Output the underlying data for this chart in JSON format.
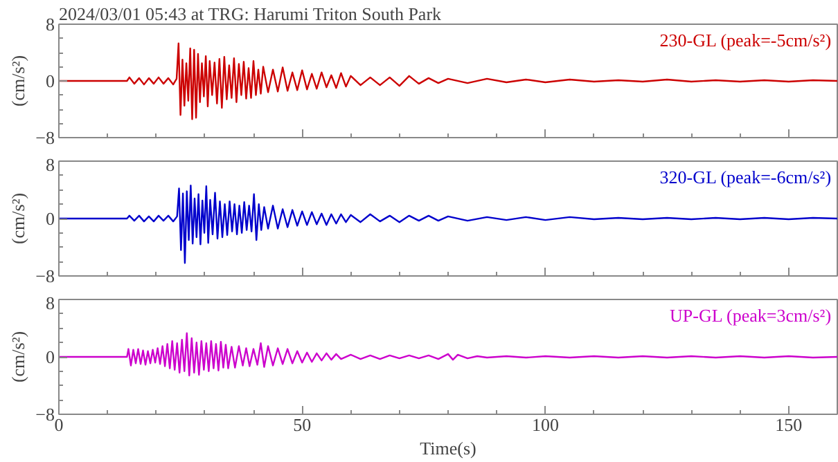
{
  "chart_data": [
    {
      "type": "line",
      "title": "2024/03/01 05:43 at TRG: Harumi Triton South Park",
      "ylabel": "(cm/s²)",
      "annotations": [
        "230-GL (peak=-5cm/s²)"
      ],
      "tick_labels": "y",
      "xlim": [
        0,
        160
      ],
      "ylim": [
        -8,
        8
      ],
      "xticks": [
        0,
        {
          "value": 10,
          "label": null
        },
        {
          "value": 20,
          "label": null
        },
        {
          "value": 30,
          "label": null
        },
        {
          "value": 40,
          "label": null
        },
        50,
        {
          "value": 60,
          "label": null
        },
        {
          "value": 70,
          "label": null
        },
        {
          "value": 80,
          "label": null
        },
        {
          "value": 90,
          "label": null
        },
        100,
        {
          "value": 110,
          "label": null
        },
        {
          "value": 120,
          "label": null
        },
        {
          "value": 130,
          "label": null
        },
        {
          "value": 140,
          "label": null
        },
        150
      ],
      "yticks": [
        -8,
        {
          "value": -6,
          "label": null
        },
        {
          "value": -4,
          "label": null
        },
        {
          "value": -2,
          "label": null
        },
        0,
        {
          "value": 2,
          "label": null
        },
        {
          "value": 4,
          "label": null
        },
        {
          "value": 6,
          "label": null
        },
        8
      ],
      "x": [
        0,
        14,
        14.5,
        15.5,
        16.5,
        17.5,
        18.5,
        19.5,
        20.5,
        21.5,
        22.5,
        23.5,
        24.2,
        24.6,
        25,
        25.4,
        25.8,
        26.2,
        26.6,
        27,
        27.4,
        27.8,
        28.2,
        28.6,
        29,
        29.4,
        29.8,
        30.2,
        30.6,
        31,
        31.5,
        32,
        32.5,
        33,
        33.5,
        34,
        34.5,
        35,
        35.5,
        36,
        36.5,
        37,
        37.5,
        38,
        38.5,
        39,
        39.5,
        40,
        40.5,
        41,
        41.5,
        42,
        43,
        44,
        45,
        46,
        47,
        48,
        49,
        50,
        51,
        52,
        53,
        54,
        55,
        56,
        57,
        58,
        59,
        60,
        62,
        64,
        66,
        68,
        70,
        72,
        74,
        76,
        78,
        80,
        84,
        88,
        92,
        96,
        100,
        105,
        110,
        115,
        120,
        125,
        130,
        135,
        140,
        145,
        150,
        155,
        160
      ],
      "series": [
        {
          "color": "#cc0000",
          "values": [
            0,
            0,
            0.5,
            -0.4,
            0.4,
            -0.5,
            0.4,
            -0.4,
            0.5,
            -0.4,
            0.4,
            -0.5,
            0.3,
            5.3,
            -4.8,
            3,
            -3.5,
            2.5,
            -2.8,
            4.6,
            -5.4,
            4.4,
            -5.2,
            3.8,
            -3,
            2.5,
            -2.2,
            3.5,
            -3.6,
            2.8,
            -2,
            2.6,
            -3.2,
            3.1,
            -3.8,
            3.4,
            -2.6,
            2.2,
            -2.4,
            3.2,
            -3,
            2.4,
            -2,
            2.7,
            -2.5,
            1.8,
            -2.4,
            2.8,
            -2,
            1.6,
            -1.8,
            2,
            -1.6,
            1.6,
            -1.5,
            1.9,
            -1.4,
            1.2,
            -1.3,
            1.5,
            -1.2,
            1,
            -1.1,
            1.2,
            -0.9,
            0.8,
            -1,
            1.1,
            -0.8,
            0.7,
            -0.6,
            0.5,
            -0.6,
            0.5,
            -0.7,
            0.7,
            -0.4,
            0.4,
            -0.3,
            0.3,
            -0.3,
            0.3,
            -0.2,
            0.2,
            -0.2,
            0.2,
            -0.1,
            0.1,
            -0.1,
            0.2,
            -0.1,
            0.1,
            -0.1,
            0.1,
            -0.1,
            0.1,
            0
          ]
        }
      ]
    },
    {
      "type": "line",
      "ylabel": "(cm/s²)",
      "annotations": [
        "320-GL (peak=-6cm/s²)"
      ],
      "tick_labels": "y",
      "xlim": [
        0,
        160
      ],
      "ylim": [
        -8,
        8
      ],
      "xticks": [
        0,
        {
          "value": 10,
          "label": null
        },
        {
          "value": 20,
          "label": null
        },
        {
          "value": 30,
          "label": null
        },
        {
          "value": 40,
          "label": null
        },
        50,
        {
          "value": 60,
          "label": null
        },
        {
          "value": 70,
          "label": null
        },
        {
          "value": 80,
          "label": null
        },
        {
          "value": 90,
          "label": null
        },
        100,
        {
          "value": 110,
          "label": null
        },
        {
          "value": 120,
          "label": null
        },
        {
          "value": 130,
          "label": null
        },
        {
          "value": 140,
          "label": null
        },
        150
      ],
      "yticks": [
        -8,
        {
          "value": -6,
          "label": null
        },
        {
          "value": -4,
          "label": null
        },
        {
          "value": -2,
          "label": null
        },
        0,
        {
          "value": 2,
          "label": null
        },
        {
          "value": 4,
          "label": null
        },
        {
          "value": 6,
          "label": null
        },
        8
      ],
      "x": [
        0,
        14,
        14.5,
        15.5,
        16.5,
        17.5,
        18.5,
        19.5,
        20.5,
        21.5,
        22.5,
        23.5,
        24.3,
        24.7,
        25.1,
        25.5,
        25.9,
        26.3,
        26.7,
        27.1,
        27.5,
        27.9,
        28.3,
        28.7,
        29.1,
        29.5,
        29.9,
        30.3,
        30.7,
        31.1,
        31.6,
        32.1,
        32.6,
        33.1,
        33.6,
        34.1,
        34.6,
        35.1,
        35.6,
        36.1,
        36.6,
        37.1,
        37.6,
        38.1,
        38.6,
        39.1,
        39.6,
        40.1,
        40.6,
        41.1,
        41.6,
        42.2,
        43,
        44,
        45,
        46,
        47,
        48,
        49,
        50,
        51,
        52,
        53,
        54,
        55,
        56,
        57,
        58,
        59,
        60,
        62,
        64,
        66,
        68,
        70,
        72,
        74,
        76,
        78,
        80,
        84,
        88,
        92,
        96,
        100,
        105,
        110,
        115,
        120,
        125,
        130,
        135,
        140,
        145,
        150,
        155,
        160
      ],
      "series": [
        {
          "color": "#0000cc",
          "values": [
            0,
            0,
            0.4,
            -0.3,
            0.4,
            -0.4,
            0.3,
            -0.4,
            0.4,
            -0.3,
            0.4,
            -0.4,
            0.3,
            4.2,
            -4.4,
            3.5,
            -6.2,
            3.8,
            -3,
            4.6,
            -3.5,
            2.8,
            -2.6,
            3.4,
            -3.6,
            2.5,
            -2,
            4.5,
            -3.4,
            2.6,
            -2.2,
            3.6,
            -2.8,
            2.4,
            -2.6,
            2,
            -2.3,
            2.4,
            -1.8,
            2,
            -2.2,
            1.8,
            -2,
            2.3,
            -1.6,
            1.8,
            -1.8,
            3.4,
            -3,
            2,
            -1.6,
            1.6,
            -1.4,
            1.8,
            -1.4,
            1.3,
            -1.2,
            1.2,
            -1,
            1,
            -0.9,
            0.9,
            -0.8,
            0.7,
            -0.9,
            0.6,
            -0.7,
            0.6,
            -0.5,
            0.5,
            -0.5,
            0.6,
            -0.4,
            0.4,
            -0.5,
            0.4,
            -0.3,
            0.4,
            -0.3,
            0.3,
            -0.3,
            0.2,
            -0.2,
            0.2,
            -0.2,
            0.2,
            -0.1,
            0.1,
            -0.1,
            0.1,
            -0.1,
            0.1,
            -0.1,
            0.1,
            -0.1,
            0.1,
            0
          ]
        }
      ]
    },
    {
      "type": "line",
      "xlabel": "Time(s)",
      "ylabel": "(cm/s²)",
      "annotations": [
        "UP-GL (peak=3cm/s²)"
      ],
      "xlim": [
        0,
        160
      ],
      "ylim": [
        -8,
        8
      ],
      "xticks": [
        0,
        {
          "value": 10,
          "label": null
        },
        {
          "value": 20,
          "label": null
        },
        {
          "value": 30,
          "label": null
        },
        {
          "value": 40,
          "label": null
        },
        50,
        {
          "value": 60,
          "label": null
        },
        {
          "value": 70,
          "label": null
        },
        {
          "value": 80,
          "label": null
        },
        {
          "value": 90,
          "label": null
        },
        100,
        {
          "value": 110,
          "label": null
        },
        {
          "value": 120,
          "label": null
        },
        {
          "value": 130,
          "label": null
        },
        {
          "value": 140,
          "label": null
        },
        150
      ],
      "yticks": [
        -8,
        {
          "value": -6,
          "label": null
        },
        {
          "value": -4,
          "label": null
        },
        {
          "value": -2,
          "label": null
        },
        0,
        {
          "value": 2,
          "label": null
        },
        {
          "value": 4,
          "label": null
        },
        {
          "value": 6,
          "label": null
        },
        8
      ],
      "x": [
        0,
        14,
        14.3,
        14.8,
        15.3,
        15.8,
        16.3,
        16.8,
        17.3,
        17.8,
        18.3,
        18.8,
        19.3,
        19.8,
        20.3,
        20.8,
        21.3,
        21.8,
        22.3,
        22.8,
        23.3,
        23.8,
        24.3,
        24.8,
        25.3,
        25.8,
        26.3,
        26.8,
        27.3,
        27.8,
        28.3,
        28.8,
        29.3,
        29.8,
        30.3,
        30.8,
        31.3,
        31.8,
        32.3,
        32.8,
        33.3,
        33.8,
        34.3,
        34.8,
        35.5,
        36.2,
        37,
        37.8,
        38.5,
        39.2,
        40,
        40.8,
        41.5,
        42.2,
        43,
        44,
        45,
        46,
        47,
        48,
        49,
        50,
        51,
        52,
        53,
        54,
        55,
        56,
        57,
        58,
        60,
        62,
        64,
        66,
        68,
        70,
        72,
        74,
        76,
        78,
        80,
        81,
        82,
        84,
        86,
        88,
        92,
        96,
        100,
        105,
        110,
        115,
        120,
        125,
        130,
        135,
        140,
        145,
        150,
        155,
        160
      ],
      "series": [
        {
          "color": "#cc00cc",
          "values": [
            0,
            0,
            1.1,
            -1.2,
            1,
            -0.9,
            1.1,
            -1,
            0.9,
            -1.1,
            0.8,
            -0.9,
            1,
            -0.8,
            1.2,
            -1,
            1.5,
            -1.3,
            1.8,
            -1.6,
            2.2,
            -1.8,
            1.9,
            -2.2,
            2.4,
            -2,
            3.3,
            -2.6,
            2.6,
            -2.2,
            2,
            -2.5,
            2.2,
            -1.8,
            1.9,
            -2,
            2.2,
            -1.6,
            1.8,
            -1.9,
            2.1,
            -1.5,
            1.7,
            -1.6,
            1.4,
            -1.5,
            1.5,
            -1.2,
            1.2,
            -1.3,
            1.1,
            -1.1,
            1.9,
            -1.4,
            1.5,
            -1.2,
            1.2,
            -1,
            1.1,
            -0.9,
            0.8,
            -0.8,
            0.6,
            -0.7,
            0.5,
            -0.5,
            0.5,
            -0.4,
            0.4,
            -0.3,
            0.3,
            -0.3,
            0.2,
            -0.3,
            0.2,
            -0.2,
            0.2,
            -0.2,
            0.2,
            -0.3,
            0.4,
            -0.4,
            0.3,
            -0.2,
            0.1,
            -0.1,
            0.1,
            -0.1,
            0.1,
            -0.1,
            0.1,
            -0.1,
            0.1,
            -0.1,
            0.1,
            -0.1,
            0.1,
            -0.1,
            0.1,
            -0.1,
            0
          ]
        }
      ]
    }
  ]
}
